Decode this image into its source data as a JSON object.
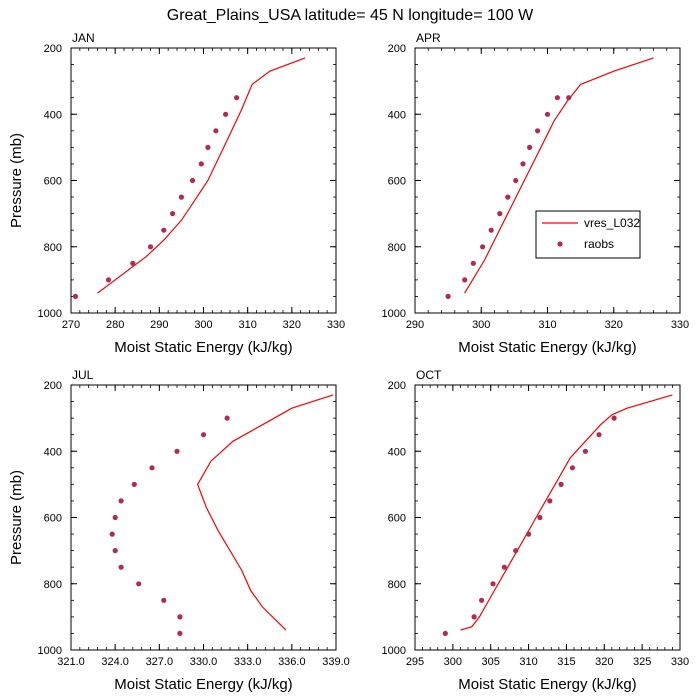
{
  "title": "Great_Plains_USA  latitude= 45 N longitude= 100 W",
  "colors": {
    "model": "#ff0000",
    "obs": "#b5294e",
    "axis": "#000000"
  },
  "legend": {
    "model_label": "vres_L032",
    "obs_label": "raobs"
  },
  "chart_data": [
    {
      "type": "line",
      "panel": "JAN",
      "title": "JAN",
      "xlabel": "Moist Static Energy (kJ/kg)",
      "ylabel": "Pressure (mb)",
      "xlim": [
        270,
        330
      ],
      "ylim": [
        1000,
        200
      ],
      "xticks": [
        270,
        280,
        290,
        300,
        310,
        320,
        330
      ],
      "xtick_labels": [
        "270",
        "280",
        "290",
        "300",
        "310",
        "320",
        "330"
      ],
      "yticks": [
        200,
        400,
        600,
        800,
        1000
      ],
      "ytick_labels": [
        "200",
        "400",
        "600",
        "800",
        "1000"
      ],
      "series": [
        {
          "name": "vres_L032",
          "kind": "line",
          "x": [
            276.0,
            279.0,
            283.0,
            287.0,
            291.0,
            295.0,
            298.0,
            301.0,
            303.5,
            306.0,
            308.5,
            311.0,
            315.0,
            323.0
          ],
          "y": [
            940,
            910,
            870,
            830,
            780,
            720,
            660,
            600,
            530,
            460,
            390,
            310,
            270,
            230
          ]
        },
        {
          "name": "raobs",
          "kind": "scatter",
          "x": [
            271.0,
            278.5,
            284.0,
            288.0,
            291.0,
            293.0,
            295.0,
            297.5,
            299.5,
            301.0,
            302.8,
            305.0,
            307.5
          ],
          "y": [
            950,
            900,
            850,
            800,
            750,
            700,
            650,
            600,
            550,
            500,
            450,
            400,
            350
          ]
        }
      ]
    },
    {
      "type": "line",
      "panel": "APR",
      "title": "APR",
      "xlabel": "Moist Static Energy (kJ/kg)",
      "ylabel": "",
      "xlim": [
        290,
        330
      ],
      "ylim": [
        1000,
        200
      ],
      "xticks": [
        290,
        300,
        310,
        320,
        330
      ],
      "xtick_labels": [
        "290",
        "300",
        "310",
        "320",
        "330"
      ],
      "yticks": [
        200,
        400,
        600,
        800,
        1000
      ],
      "ytick_labels": [
        "200",
        "400",
        "600",
        "800",
        "1000"
      ],
      "series": [
        {
          "name": "vres_L032",
          "kind": "line",
          "x": [
            297.5,
            299.0,
            300.5,
            302.0,
            303.5,
            305.0,
            306.5,
            308.0,
            309.5,
            311.0,
            313.0,
            315.0,
            320.0,
            326.0
          ],
          "y": [
            940,
            890,
            840,
            780,
            720,
            660,
            600,
            540,
            480,
            420,
            360,
            310,
            270,
            230
          ]
        },
        {
          "name": "raobs",
          "kind": "scatter",
          "x": [
            295.0,
            297.5,
            298.8,
            300.2,
            301.5,
            302.8,
            304.0,
            305.2,
            306.3,
            307.3,
            308.5,
            310.0,
            311.5,
            313.2
          ],
          "y": [
            950,
            900,
            850,
            800,
            750,
            700,
            650,
            600,
            550,
            500,
            450,
            400,
            350,
            350
          ]
        }
      ]
    },
    {
      "type": "line",
      "panel": "JUL",
      "title": "JUL",
      "xlabel": "Moist Static Energy (kJ/kg)",
      "ylabel": "Pressure (mb)",
      "xlim": [
        321.0,
        339.0
      ],
      "ylim": [
        1000,
        200
      ],
      "xticks": [
        321.0,
        324.0,
        327.0,
        330.0,
        333.0,
        336.0,
        339.0
      ],
      "xtick_labels": [
        "321.0",
        "324.0",
        "327.0",
        "330.0",
        "333.0",
        "336.0",
        "339.0"
      ],
      "yticks": [
        200,
        400,
        600,
        800,
        1000
      ],
      "ytick_labels": [
        "200",
        "400",
        "600",
        "800",
        "1000"
      ],
      "series": [
        {
          "name": "vres_L032",
          "kind": "line",
          "x": [
            335.6,
            334.0,
            333.2,
            332.6,
            331.8,
            331.0,
            330.2,
            329.6,
            330.5,
            332.0,
            334.0,
            336.0,
            338.8
          ],
          "y": [
            940,
            870,
            820,
            760,
            700,
            640,
            570,
            500,
            430,
            370,
            320,
            270,
            230
          ]
        },
        {
          "name": "raobs",
          "kind": "scatter",
          "x": [
            328.4,
            328.4,
            327.3,
            325.6,
            324.4,
            324.0,
            323.8,
            324.0,
            324.4,
            325.3,
            326.5,
            328.2,
            330.0,
            331.6
          ],
          "y": [
            950,
            900,
            850,
            800,
            750,
            700,
            650,
            600,
            550,
            500,
            450,
            400,
            350,
            300
          ]
        }
      ]
    },
    {
      "type": "line",
      "panel": "OCT",
      "title": "OCT",
      "xlabel": "Moist Static Energy (kJ/kg)",
      "ylabel": "",
      "xlim": [
        295,
        330
      ],
      "ylim": [
        1000,
        200
      ],
      "xticks": [
        295,
        300,
        305,
        310,
        315,
        320,
        325,
        330
      ],
      "xtick_labels": [
        "295",
        "300",
        "305",
        "310",
        "315",
        "320",
        "325",
        "330"
      ],
      "yticks": [
        200,
        400,
        600,
        800,
        1000
      ],
      "ytick_labels": [
        "200",
        "400",
        "600",
        "800",
        "1000"
      ],
      "series": [
        {
          "name": "vres_L032",
          "kind": "line",
          "x": [
            301.0,
            302.5,
            303.5,
            305.0,
            306.5,
            308.0,
            309.5,
            311.0,
            312.5,
            314.0,
            315.5,
            317.5,
            319.5,
            321.0,
            323.0,
            329.0
          ],
          "y": [
            940,
            930,
            900,
            840,
            780,
            720,
            660,
            600,
            540,
            480,
            420,
            370,
            320,
            290,
            270,
            230
          ]
        },
        {
          "name": "raobs",
          "kind": "scatter",
          "x": [
            299.0,
            302.8,
            303.8,
            305.3,
            306.8,
            308.3,
            310.0,
            311.5,
            312.8,
            314.3,
            315.8,
            317.5,
            319.3,
            321.3
          ],
          "y": [
            950,
            900,
            850,
            800,
            750,
            700,
            650,
            600,
            550,
            500,
            450,
            400,
            350,
            300
          ]
        }
      ]
    }
  ]
}
